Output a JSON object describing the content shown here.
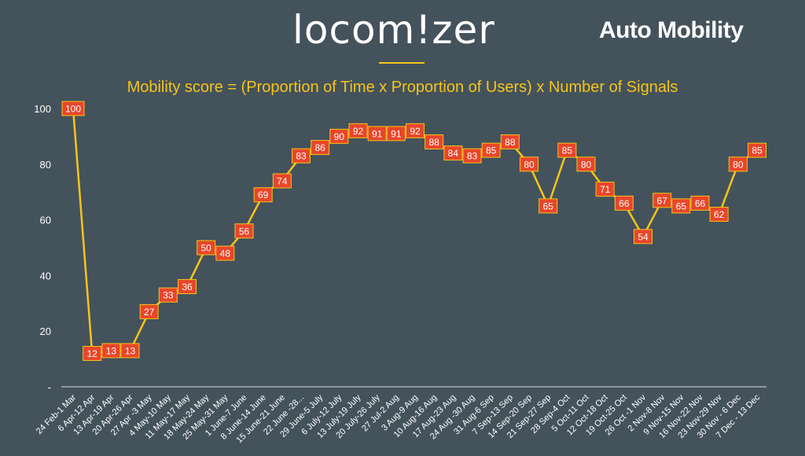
{
  "header": {
    "brand": "locom!zer",
    "title": "Auto Mobility",
    "accent_color": "#f5c518"
  },
  "chart_data": {
    "type": "line",
    "title": "Mobility score = (Proportion of Time x Proportion of Users) x Number of Signals",
    "xlabel": "",
    "ylabel": "",
    "ylim": [
      0,
      100
    ],
    "yticks": [
      0,
      20,
      40,
      60,
      80,
      100
    ],
    "ytick_labels": [
      "-",
      "20",
      "40",
      "60",
      "80",
      "100"
    ],
    "grid": false,
    "legend": "none",
    "line_color": "#f5c518",
    "marker_color": "#e8462a",
    "categories": [
      "24 Feb-1 Mar",
      "6 Apr-12 Apr",
      "13 Apr-19 Apr",
      "20 Apr-26 Apr",
      "27 Apr -3 May",
      "4 May-10 May",
      "11 May-17 May",
      "18 May-24 May",
      "25 May-31 May",
      "1 June-7 June",
      "8 June-14 June",
      "15 June-21 June",
      "22 June -28...",
      "29 June-5 July",
      "6 July-12 July",
      "13 July-19 July",
      "20 July-26 July",
      "27 Jul-2 Aug",
      "3 Aug-9 Aug",
      "10 Aug-16 Aug",
      "17 Aug-23 Aug",
      "24 Aug -30 Aug",
      "31 Aug-6 Sep",
      "7 Sep-13 Sep",
      "14 Sep-20 Sep",
      "21 Sep-27 Sep",
      "28 Sep-4 Oct",
      "5 Oct-11 Oct",
      "12 Oct-18 Oct",
      "19 Oct-25 Oct",
      "26 Oct -1 Nov",
      "2 Nov-8 Nov",
      "9 Nov-15 Nov",
      "16 Nov-22 Nov",
      "23 Nov-29 Nov",
      "30 Nov - 6 Dec",
      "7 Dec - 13 Dec"
    ],
    "series": [
      {
        "values": [
          100,
          12,
          13,
          13,
          27,
          33,
          36,
          50,
          48,
          56,
          69,
          74,
          83,
          86,
          90,
          92,
          91,
          91,
          92,
          88,
          84,
          83,
          85,
          88,
          80,
          65,
          85,
          80,
          71,
          66,
          54,
          67,
          65,
          66,
          62,
          80,
          85
        ]
      }
    ]
  }
}
